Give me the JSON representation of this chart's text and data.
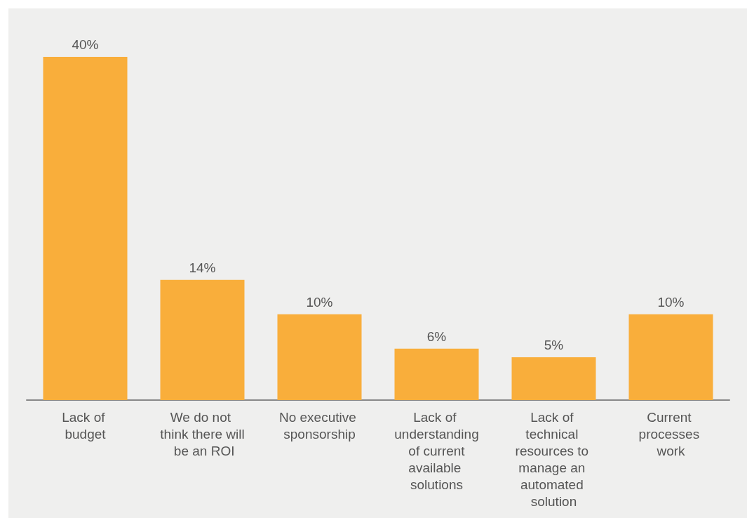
{
  "chart_data": {
    "type": "bar",
    "categories": [
      "Lack of budget",
      "We do not think there will be an ROI",
      "No executive sponsorship",
      "Lack of understanding of current available solutions",
      "Lack of technical resources to manage an automated solution",
      "Current processes work"
    ],
    "values": [
      40,
      14,
      10,
      6,
      5,
      10
    ],
    "value_labels": [
      "40%",
      "14%",
      "10%",
      "6%",
      "5%",
      "10%"
    ],
    "color": "#f9ae3b"
  }
}
